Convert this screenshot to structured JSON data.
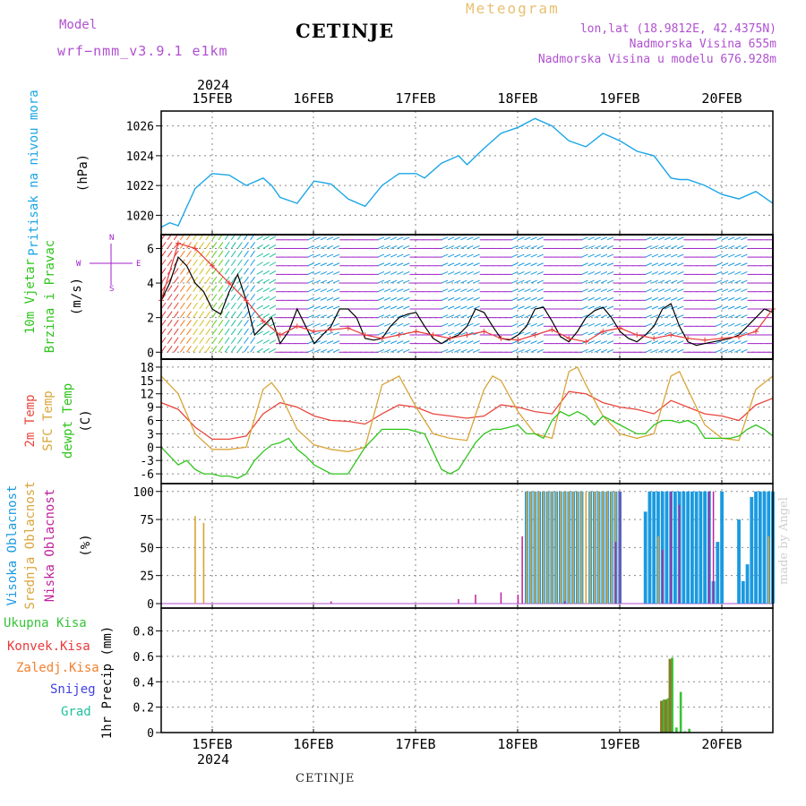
{
  "header": {
    "model_label": "Model",
    "model_name": "wrf−nmm_v3.9.1  e1km",
    "station": "CETINJE",
    "product": "Meteogram",
    "lonlat": "lon,lat (18.9812E, 42.4375N)",
    "elevation": "Nadmorska Visina 655m",
    "model_elevation": "Nadmorska Visina u modelu 676.928m"
  },
  "footer": {
    "station": "CETINJE"
  },
  "credit": "made by Angel",
  "colors": {
    "pressure": "#1aa6e6",
    "t2m": "#e8463c",
    "sfc": "#d9a53a",
    "dew": "#2fc41c",
    "wind_speed": "#000000",
    "wind_gust": "#e83a3a",
    "wind_dir_north": "#a020c8",
    "cloud_high": "#1a9ae0",
    "cloud_mid": "#d9a53a",
    "cloud_low": "#c0209a",
    "precip_total": "#38c438",
    "precip_conv": "#e83a3a",
    "precip_strat": "#8b7a2a",
    "snow": "#4040e0",
    "grad": "#20c0a0",
    "title_purple": "#b050d0",
    "meteogram_orange": "#e8c070"
  },
  "time_axis": {
    "year_label": "2024",
    "day_labels": [
      "15FEB",
      "16FEB",
      "17FEB",
      "18FEB",
      "19FEB",
      "20FEB"
    ],
    "start_day": "2024-02-14 12:00",
    "end_day": "2024-02-20 12:00"
  },
  "chart_data": [
    {
      "type": "line",
      "panel": "pressure",
      "ylabel": [
        "Pritisak na nivou mora",
        "(hPa)"
      ],
      "yticks": [
        1020,
        1022,
        1024,
        1026
      ],
      "ylim": [
        1018.7,
        1027.0
      ],
      "grid": true,
      "series": [
        {
          "color_key": "pressure",
          "x_hours": [
            0,
            2,
            4,
            8,
            12,
            16,
            20,
            24,
            26,
            28,
            32,
            36,
            40,
            44,
            48,
            52,
            56,
            60,
            62,
            66,
            70,
            72,
            76,
            80,
            84,
            88,
            92,
            96,
            100,
            104,
            108,
            112,
            116,
            120,
            122,
            124,
            128,
            132,
            136,
            140,
            144
          ],
          "values": [
            1019.2,
            1019.5,
            1019.3,
            1021.8,
            1022.8,
            1022.7,
            1022.0,
            1022.5,
            1022.0,
            1021.2,
            1020.8,
            1022.3,
            1022.1,
            1021.1,
            1020.6,
            1022.0,
            1022.8,
            1022.8,
            1022.5,
            1023.5,
            1024.0,
            1023.4,
            1024.5,
            1025.5,
            1025.9,
            1026.5,
            1026.0,
            1025.0,
            1024.6,
            1025.5,
            1025.0,
            1024.3,
            1024.0,
            1022.5,
            1022.4,
            1022.4,
            1022.0,
            1021.4,
            1021.1,
            1021.6,
            1020.8
          ]
        }
      ]
    },
    {
      "type": "line",
      "panel": "wind",
      "ylabel": [
        "10m Vjetar",
        "Brzina i Pravac",
        "(m/s)"
      ],
      "compass": [
        "N",
        "W",
        "E",
        "S"
      ],
      "yticks": [
        0,
        2,
        4,
        6
      ],
      "ylim": [
        -0.4,
        6.8
      ],
      "grid": true,
      "series": [
        {
          "name_key": "wind_speed",
          "color_key": "wind_speed",
          "x_hours": [
            0,
            2,
            4,
            6,
            8,
            10,
            12,
            14,
            16,
            18,
            20,
            22,
            24,
            26,
            28,
            30,
            32,
            34,
            36,
            38,
            40,
            42,
            44,
            46,
            48,
            50,
            52,
            54,
            56,
            58,
            60,
            62,
            64,
            66,
            68,
            70,
            72,
            74,
            76,
            78,
            80,
            82,
            84,
            86,
            88,
            90,
            92,
            94,
            96,
            98,
            100,
            102,
            104,
            106,
            108,
            110,
            112,
            114,
            116,
            118,
            120,
            122,
            124,
            126,
            128,
            130,
            132,
            134,
            136,
            138,
            140,
            142,
            144
          ],
          "values": [
            3.0,
            4.0,
            5.5,
            5.0,
            4.0,
            3.5,
            2.5,
            2.2,
            3.5,
            4.5,
            3.0,
            1.0,
            1.5,
            2.0,
            0.5,
            1.2,
            2.5,
            1.5,
            0.5,
            1.0,
            1.5,
            2.5,
            2.5,
            2.0,
            0.8,
            0.7,
            0.8,
            1.5,
            2.0,
            2.2,
            2.3,
            1.5,
            0.8,
            0.5,
            0.8,
            1.0,
            1.5,
            2.5,
            2.3,
            1.5,
            0.8,
            0.7,
            1.0,
            1.5,
            2.5,
            2.6,
            1.8,
            0.9,
            0.6,
            1.2,
            2.0,
            2.4,
            2.6,
            2.0,
            1.2,
            0.8,
            0.6,
            1.0,
            1.5,
            2.5,
            2.8,
            1.5,
            0.6,
            0.4,
            0.5,
            0.6,
            0.7,
            0.8,
            1.0,
            1.5,
            2.0,
            2.5,
            2.3
          ]
        },
        {
          "name_key": "wind_gust",
          "color_key": "wind_gust",
          "x_hours": [
            0,
            4,
            8,
            12,
            16,
            20,
            24,
            28,
            32,
            36,
            40,
            44,
            48,
            52,
            56,
            60,
            64,
            68,
            72,
            76,
            80,
            84,
            88,
            92,
            96,
            100,
            104,
            108,
            112,
            116,
            120,
            124,
            128,
            132,
            136,
            140,
            144
          ],
          "values": [
            3.0,
            6.3,
            6.0,
            5.0,
            4.0,
            3.0,
            1.8,
            1.0,
            1.5,
            1.2,
            1.3,
            1.4,
            1.0,
            0.8,
            1.0,
            1.2,
            1.0,
            0.8,
            1.0,
            1.2,
            0.8,
            0.7,
            1.0,
            1.3,
            0.8,
            0.6,
            1.2,
            1.4,
            1.0,
            0.8,
            1.0,
            0.8,
            0.7,
            0.8,
            0.9,
            1.2,
            2.5
          ]
        }
      ],
      "direction_rows": [
        0,
        0.5,
        1,
        1.5,
        2,
        2.5,
        3,
        3.5,
        4,
        4.5,
        5,
        5.5,
        6,
        6.5
      ],
      "direction_note_key": "wind_dir_north"
    },
    {
      "type": "line",
      "panel": "temperature",
      "ylabel": [
        "2m Temp",
        "SFC Temp",
        "dewpt Temp",
        "(C)"
      ],
      "yticks": [
        -6,
        -3,
        0,
        3,
        6,
        9,
        12,
        15,
        18
      ],
      "ylim": [
        -8.2,
        19.8
      ],
      "grid": true,
      "series": [
        {
          "name_key": "t2m",
          "color_key": "t2m",
          "x_hours": [
            0,
            4,
            8,
            12,
            16,
            20,
            24,
            28,
            32,
            36,
            40,
            44,
            48,
            52,
            56,
            60,
            64,
            68,
            72,
            76,
            80,
            84,
            88,
            92,
            96,
            100,
            104,
            108,
            112,
            116,
            120,
            124,
            128,
            132,
            136,
            140,
            144
          ],
          "values": [
            10,
            8.5,
            4.5,
            1.8,
            1.8,
            2.5,
            7.5,
            10,
            9,
            7,
            6,
            5.8,
            5.2,
            7.5,
            9.5,
            9,
            7.5,
            7,
            6.5,
            7,
            9.5,
            9,
            8,
            7.5,
            12.5,
            12,
            10,
            9,
            8.5,
            7.5,
            10.5,
            9,
            7.5,
            7,
            6,
            9.5,
            11
          ]
        },
        {
          "name_key": "sfc",
          "color_key": "sfc",
          "x_hours": [
            0,
            4,
            8,
            12,
            16,
            20,
            24,
            26,
            28,
            32,
            36,
            40,
            44,
            48,
            52,
            56,
            60,
            64,
            68,
            72,
            76,
            78,
            80,
            84,
            88,
            92,
            96,
            98,
            100,
            104,
            108,
            112,
            116,
            120,
            122,
            124,
            128,
            132,
            136,
            140,
            144
          ],
          "values": [
            16,
            12,
            3,
            -0.5,
            -0.5,
            0,
            13,
            14.5,
            12,
            4,
            0.5,
            -0.5,
            -1,
            0,
            14,
            16,
            9,
            3,
            2,
            1.5,
            13,
            16,
            15,
            8,
            3,
            2,
            17,
            18,
            14,
            7,
            3,
            2,
            3,
            16,
            17,
            13,
            5,
            2,
            1.5,
            13,
            16
          ]
        },
        {
          "name_key": "dew",
          "color_key": "dew",
          "x_hours": [
            0,
            2,
            4,
            6,
            8,
            10,
            12,
            14,
            16,
            18,
            20,
            22,
            24,
            26,
            28,
            30,
            32,
            34,
            36,
            38,
            40,
            42,
            44,
            46,
            48,
            50,
            52,
            54,
            56,
            58,
            60,
            62,
            64,
            66,
            68,
            70,
            72,
            74,
            76,
            78,
            80,
            82,
            84,
            86,
            88,
            90,
            92,
            94,
            96,
            98,
            100,
            102,
            104,
            106,
            108,
            110,
            112,
            114,
            116,
            118,
            120,
            122,
            124,
            126,
            128,
            130,
            132,
            134,
            136,
            138,
            140,
            142,
            144
          ],
          "values": [
            0,
            -2,
            -4,
            -3,
            -5,
            -6,
            -6,
            -6.5,
            -6.5,
            -7,
            -6,
            -3,
            -1,
            0.5,
            1,
            2,
            -0.5,
            -2,
            -4,
            -5,
            -6,
            -6,
            -6,
            -3,
            0,
            2,
            4,
            4,
            4,
            4,
            3.5,
            3,
            -1,
            -5,
            -6,
            -5,
            -2,
            1,
            3,
            4,
            4,
            4.5,
            5,
            3,
            3,
            2,
            6,
            8,
            7,
            8,
            7,
            5,
            7,
            6,
            5,
            4,
            3,
            3,
            5,
            6,
            6,
            5.5,
            6,
            5,
            2,
            2,
            2,
            2,
            2.5,
            4,
            5,
            4,
            2.5
          ]
        }
      ]
    },
    {
      "type": "bar",
      "panel": "cloud",
      "ylabel": [
        "Visoka Oblacnost",
        "Srednja Oblacnost",
        "Niska Oblacnost",
        "(%)"
      ],
      "yticks": [
        0,
        25,
        50,
        75,
        100
      ],
      "ylim": [
        -4,
        107
      ],
      "grid": true,
      "bars": {
        "high": {
          "color_key": "cloud_high",
          "x_hours": [
            86,
            87,
            88,
            89,
            90,
            91,
            92,
            93,
            94,
            95,
            96,
            97,
            98,
            99,
            101,
            102,
            103,
            104,
            105,
            106,
            107,
            108,
            114,
            115,
            116,
            117,
            118,
            119,
            120,
            121,
            122,
            123,
            124,
            125,
            126,
            127,
            128,
            129,
            130,
            131,
            132,
            136,
            137,
            138,
            139,
            140,
            141,
            142,
            143,
            144
          ],
          "values": [
            100,
            100,
            100,
            100,
            100,
            100,
            100,
            100,
            100,
            100,
            100,
            100,
            100,
            100,
            100,
            100,
            100,
            100,
            100,
            100,
            100,
            100,
            82,
            100,
            100,
            100,
            100,
            100,
            100,
            100,
            100,
            100,
            100,
            100,
            100,
            100,
            100,
            100,
            20,
            55,
            100,
            75,
            20,
            35,
            95,
            100,
            100,
            100,
            100,
            100
          ]
        },
        "mid": {
          "color_key": "cloud_mid",
          "x_hours": [
            8,
            10,
            86,
            87,
            88,
            89,
            90,
            91,
            92,
            93,
            94,
            95,
            96,
            97,
            98,
            99,
            100,
            101,
            102,
            103,
            104,
            105,
            106,
            107,
            108,
            117,
            143
          ],
          "values": [
            78,
            72,
            100,
            100,
            100,
            100,
            100,
            100,
            100,
            100,
            100,
            100,
            100,
            100,
            100,
            100,
            100,
            100,
            100,
            100,
            100,
            100,
            100,
            100,
            100,
            60,
            60
          ]
        },
        "low": {
          "color_key": "cloud_low",
          "x_hours": [
            40,
            70,
            74,
            80,
            84,
            85,
            95,
            107,
            108,
            118,
            120,
            122,
            129,
            130
          ],
          "values": [
            2,
            4,
            8,
            10,
            8,
            60,
            2,
            55,
            100,
            48,
            100,
            88,
            100,
            100
          ]
        }
      }
    },
    {
      "type": "bar",
      "panel": "precip",
      "ylabel": [
        "1hr Precip (mm)"
      ],
      "legend": [
        "Ukupna Kisa",
        "Konvek.Kisa",
        "Zaledj.Kisa",
        "Snijeg",
        "Grad"
      ],
      "yticks": [
        0,
        0.2,
        0.4,
        0.6,
        0.8
      ],
      "ylim": [
        0,
        0.98
      ],
      "grid": true,
      "bars": {
        "stratiform": {
          "color_key": "precip_strat",
          "x_hours": [
            118,
            119,
            120
          ],
          "values": [
            0.25,
            0.26,
            0.58
          ]
        },
        "total": {
          "color_key": "precip_total",
          "x_hours": [
            118,
            119,
            120,
            121,
            122,
            123,
            124
          ],
          "values": [
            0.26,
            0.27,
            0.59,
            0.04,
            0.32,
            0.01,
            0.03
          ]
        }
      }
    }
  ]
}
